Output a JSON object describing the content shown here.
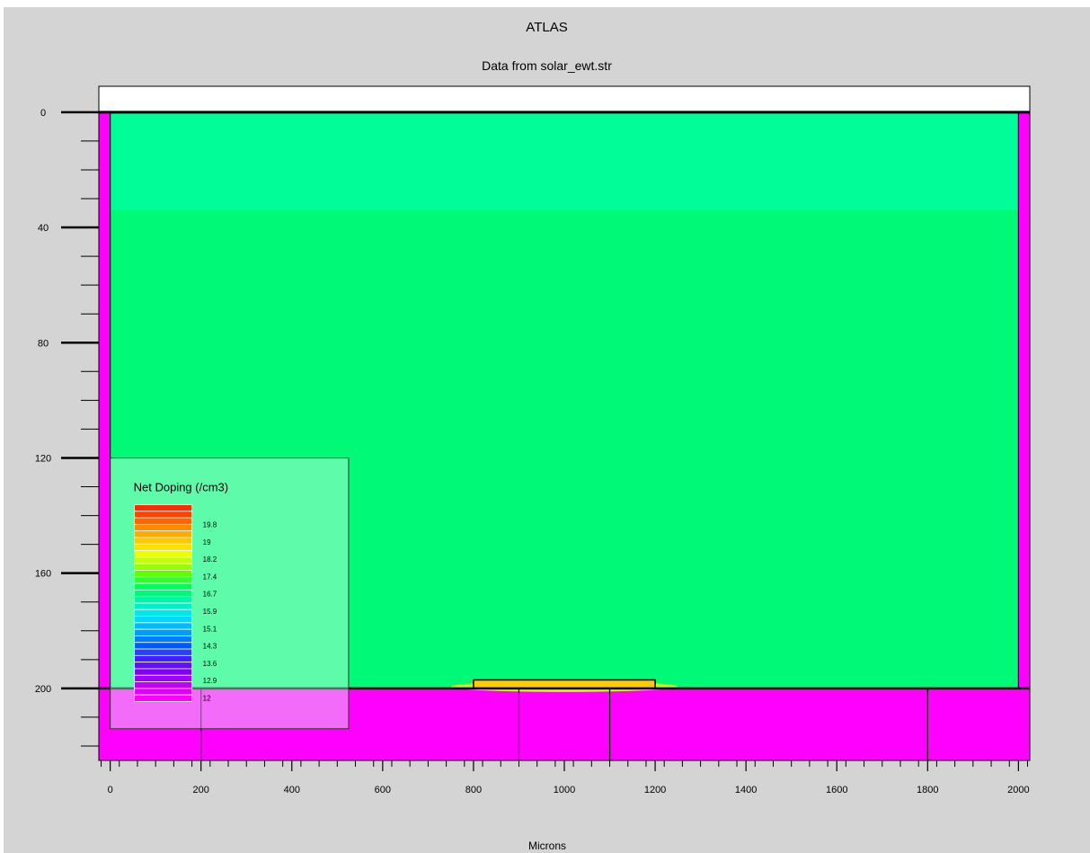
{
  "chart_data": {
    "type": "heatmap",
    "title": "ATLAS",
    "subtitle": "Data from solar_ewt.str",
    "xlabel": "Microns",
    "ylabel": "",
    "xlim": [
      -25,
      2025
    ],
    "ylim": [
      -9,
      225
    ],
    "y_inverted": true,
    "x_ticks": [
      0,
      200,
      400,
      600,
      800,
      1000,
      1200,
      1400,
      1600,
      1800,
      2000
    ],
    "y_ticks": [
      0,
      40,
      80,
      120,
      160,
      200
    ],
    "colors": {
      "background": "#d4d4d4",
      "electrode": "#ff00ff",
      "substrate_top": "#00fd97",
      "substrate_bulk": "#00fa78",
      "emitter_contact": "#ffcc00",
      "emitter_glow": "#ccff00",
      "empty": "#ffffff"
    },
    "regions": [
      {
        "name": "air",
        "x": [
          -25,
          2025
        ],
        "y": [
          -9,
          0
        ],
        "color": "#ffffff"
      },
      {
        "name": "left-electrode",
        "x": [
          -25,
          0
        ],
        "y": [
          0,
          200
        ],
        "color": "#ff00ff"
      },
      {
        "name": "right-electrode",
        "x": [
          2000,
          2025
        ],
        "y": [
          0,
          200
        ],
        "color": "#ff00ff"
      },
      {
        "name": "bottom-electrode",
        "x": [
          -25,
          2025
        ],
        "y": [
          200,
          225
        ],
        "color": "#ff00ff"
      },
      {
        "name": "surface-layer",
        "x": [
          0,
          2000
        ],
        "y": [
          0,
          34
        ],
        "color": "#00fd97"
      },
      {
        "name": "bulk",
        "x": [
          0,
          2000
        ],
        "y": [
          34,
          200
        ],
        "color": "#00fa78"
      },
      {
        "name": "emitter-glow",
        "x": [
          750,
          1250
        ],
        "y": [
          198,
          200
        ],
        "color": "#ccff00"
      },
      {
        "name": "emitter-contact",
        "x": [
          800,
          1200
        ],
        "y": [
          198,
          200
        ],
        "color": "#ffcc00"
      }
    ],
    "bottom_dividers": [
      200,
      900,
      1100,
      1800
    ],
    "legend": {
      "title": "Net Doping (/cm3)",
      "position": "bottom-left",
      "labels": [
        "19.8",
        "19",
        "18.2",
        "17.4",
        "16.7",
        "15.9",
        "15.1",
        "14.3",
        "13.6",
        "12.9",
        "12"
      ],
      "colors": [
        "#ff2a00",
        "#ff4400",
        "#ff6400",
        "#ff8a00",
        "#ffaa00",
        "#ffc800",
        "#ffe000",
        "#eeff00",
        "#c4ff00",
        "#96ff00",
        "#60ff00",
        "#30ff30",
        "#00ff5a",
        "#00fa78",
        "#00f5a5",
        "#00f0cc",
        "#00e8e8",
        "#00d8ff",
        "#00bcff",
        "#009cff",
        "#007cff",
        "#005cff",
        "#2a40ff",
        "#4020ff",
        "#6010ff",
        "#8000ff",
        "#a000ff",
        "#c000ff",
        "#e000ff",
        "#ff00ff"
      ]
    }
  }
}
